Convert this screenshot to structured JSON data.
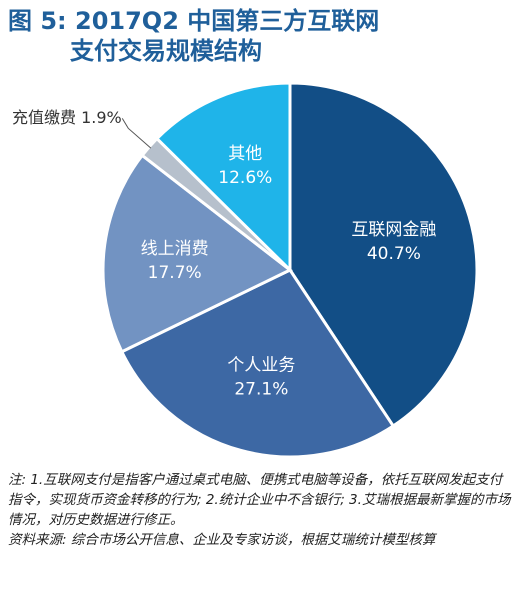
{
  "title": {
    "line1": "图 5: 2017Q2 中国第三方互联网",
    "line2": "支付交易规模结构"
  },
  "chart_data": {
    "type": "pie",
    "title": "图 5: 2017Q2 中国第三方互联网支付交易规模结构",
    "start": "12 o'clock, clockwise",
    "slices": [
      {
        "label": "互联网金融",
        "value": 40.7,
        "value_text": "40.7%",
        "color": "#124e86",
        "text_color": "#ffffff"
      },
      {
        "label": "个人业务",
        "value": 27.1,
        "value_text": "27.1%",
        "color": "#3d68a4",
        "text_color": "#ffffff"
      },
      {
        "label": "线上消费",
        "value": 17.7,
        "value_text": "17.7%",
        "color": "#7293c2",
        "text_color": "#ffffff"
      },
      {
        "label": "充值缴费",
        "value": 1.9,
        "value_text": "1.9%",
        "color": "#b6c0cc",
        "text_color": "#333333",
        "callout": true
      },
      {
        "label": "其他",
        "value": 12.6,
        "value_text": "12.6%",
        "color": "#1fb4e9",
        "text_color": "#ffffff"
      }
    ]
  },
  "notes": {
    "note": "注: 1.互联网支付是指客户通过桌式电脑、便携式电脑等设备，依托互联网发起支付指令，实现货币资金转移的行为; 2.统计企业中不含银行; 3.艾瑞根据最新掌握的市场情况，对历史数据进行修正。",
    "source": "资料来源: 综合市场公开信息、企业及专家访谈，根据艾瑞统计模型核算"
  }
}
